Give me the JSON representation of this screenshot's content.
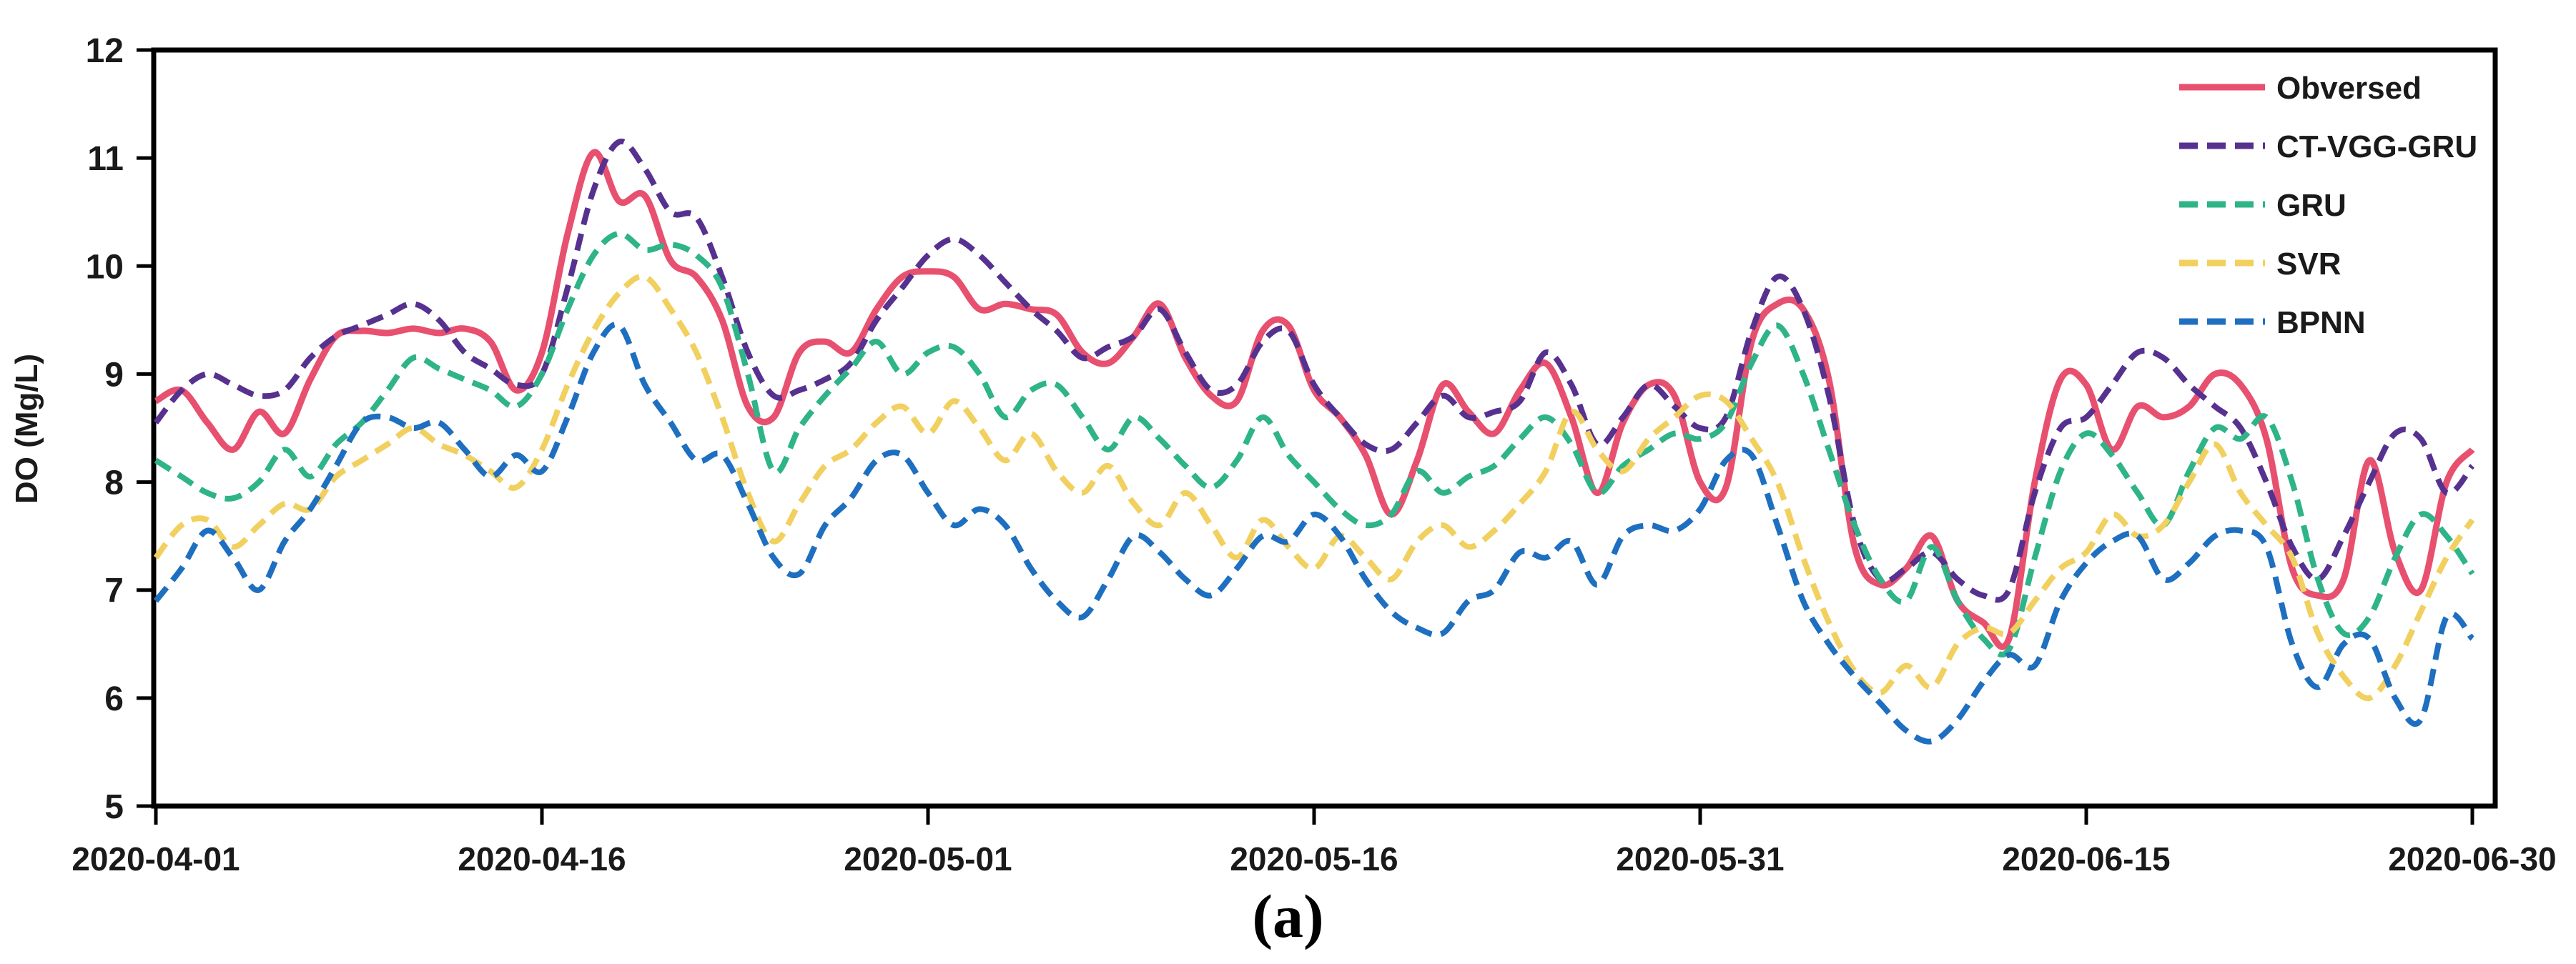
{
  "figure": {
    "caption": "(a)"
  },
  "chart_data": {
    "type": "line",
    "title": "",
    "xlabel": "",
    "ylabel": "DO (Mg/L)",
    "ylim": [
      5,
      12
    ],
    "yticks": [
      5,
      6,
      7,
      8,
      9,
      10,
      11,
      12
    ],
    "x_tick_labels": [
      "2020-04-01",
      "2020-04-16",
      "2020-05-01",
      "2020-05-16",
      "2020-05-31",
      "2020-06-15",
      "2020-06-30"
    ],
    "x_tick_days": [
      0,
      15,
      30,
      45,
      60,
      75,
      90
    ],
    "x_unit": "days since 2020-04-01, daily samples",
    "grid": false,
    "legend_position": "top-right",
    "axis_color": "#000000",
    "series": [
      {
        "name": "Obversed",
        "color": "#e8506f",
        "style": "solid",
        "values": [
          8.75,
          8.85,
          8.55,
          8.3,
          8.65,
          8.45,
          8.95,
          9.35,
          9.4,
          9.38,
          9.42,
          9.38,
          9.42,
          9.3,
          8.85,
          9.2,
          10.3,
          11.05,
          10.6,
          10.65,
          10.05,
          9.9,
          9.5,
          8.7,
          8.6,
          9.2,
          9.3,
          9.2,
          9.6,
          9.9,
          9.95,
          9.9,
          9.6,
          9.65,
          9.6,
          9.55,
          9.2,
          9.1,
          9.35,
          9.65,
          9.15,
          8.8,
          8.75,
          9.4,
          9.45,
          8.85,
          8.6,
          8.25,
          7.7,
          8.2,
          8.9,
          8.65,
          8.45,
          8.85,
          9.1,
          8.6,
          7.9,
          8.55,
          8.9,
          8.8,
          8.0,
          7.95,
          9.3,
          9.65,
          9.6,
          8.95,
          7.4,
          7.05,
          7.2,
          7.5,
          6.9,
          6.7,
          6.55,
          8.0,
          8.95,
          8.9,
          8.3,
          8.7,
          8.6,
          8.7,
          9.0,
          8.9,
          8.4,
          7.2,
          6.95,
          7.1,
          8.2,
          7.35,
          7.0,
          8.0,
          8.3
        ]
      },
      {
        "name": "CT-VGG-GRU",
        "color": "#56318f",
        "style": "dashed",
        "values": [
          8.55,
          8.85,
          9.0,
          8.9,
          8.8,
          8.85,
          9.15,
          9.35,
          9.45,
          9.55,
          9.65,
          9.5,
          9.2,
          9.05,
          8.9,
          9.0,
          9.8,
          10.7,
          11.15,
          10.9,
          10.5,
          10.45,
          9.9,
          9.2,
          8.8,
          8.85,
          8.95,
          9.1,
          9.5,
          9.8,
          10.1,
          10.25,
          10.1,
          9.85,
          9.6,
          9.4,
          9.15,
          9.25,
          9.35,
          9.6,
          9.2,
          8.85,
          8.9,
          9.3,
          9.4,
          8.9,
          8.6,
          8.35,
          8.3,
          8.55,
          8.8,
          8.6,
          8.65,
          8.75,
          9.2,
          8.9,
          8.35,
          8.6,
          8.9,
          8.7,
          8.5,
          8.6,
          9.4,
          9.9,
          9.6,
          8.8,
          7.6,
          7.1,
          7.2,
          7.35,
          7.1,
          6.95,
          7.0,
          7.9,
          8.5,
          8.6,
          8.9,
          9.2,
          9.15,
          8.9,
          8.7,
          8.5,
          8.0,
          7.4,
          7.1,
          7.5,
          8.0,
          8.45,
          8.4,
          7.9,
          8.15
        ]
      },
      {
        "name": "GRU",
        "color": "#2eb488",
        "style": "dashed",
        "values": [
          8.2,
          8.05,
          7.9,
          7.85,
          8.0,
          8.3,
          8.05,
          8.35,
          8.55,
          8.85,
          9.15,
          9.05,
          8.95,
          8.85,
          8.7,
          9.0,
          9.6,
          10.1,
          10.3,
          10.15,
          10.2,
          10.1,
          9.8,
          9.0,
          8.1,
          8.5,
          8.8,
          9.05,
          9.3,
          9.0,
          9.2,
          9.25,
          9.0,
          8.6,
          8.85,
          8.9,
          8.6,
          8.3,
          8.6,
          8.4,
          8.15,
          7.95,
          8.2,
          8.6,
          8.25,
          8.0,
          7.75,
          7.6,
          7.7,
          8.1,
          7.9,
          8.05,
          8.15,
          8.4,
          8.6,
          8.35,
          7.9,
          8.15,
          8.3,
          8.45,
          8.4,
          8.55,
          9.1,
          9.45,
          9.0,
          8.3,
          7.6,
          7.1,
          6.9,
          7.4,
          6.9,
          6.55,
          6.45,
          7.3,
          8.1,
          8.45,
          8.25,
          7.9,
          7.6,
          8.1,
          8.5,
          8.4,
          8.6,
          8.0,
          7.1,
          6.6,
          6.75,
          7.3,
          7.7,
          7.5,
          7.15
        ]
      },
      {
        "name": "SVR",
        "color": "#f1d05f",
        "style": "dashed",
        "values": [
          7.3,
          7.6,
          7.65,
          7.4,
          7.6,
          7.8,
          7.75,
          8.05,
          8.2,
          8.35,
          8.5,
          8.35,
          8.25,
          8.1,
          7.95,
          8.3,
          8.9,
          9.4,
          9.75,
          9.9,
          9.6,
          9.2,
          8.6,
          7.9,
          7.45,
          7.8,
          8.15,
          8.3,
          8.55,
          8.7,
          8.45,
          8.75,
          8.5,
          8.2,
          8.45,
          8.1,
          7.9,
          8.15,
          7.8,
          7.6,
          7.9,
          7.6,
          7.3,
          7.65,
          7.4,
          7.2,
          7.5,
          7.3,
          7.1,
          7.45,
          7.6,
          7.4,
          7.55,
          7.8,
          8.1,
          8.65,
          8.3,
          8.1,
          8.4,
          8.6,
          8.8,
          8.75,
          8.4,
          8.0,
          7.3,
          6.7,
          6.25,
          6.05,
          6.3,
          6.1,
          6.5,
          6.65,
          6.6,
          6.9,
          7.2,
          7.35,
          7.7,
          7.5,
          7.6,
          8.0,
          8.35,
          7.9,
          7.6,
          7.3,
          6.6,
          6.2,
          6.0,
          6.3,
          6.8,
          7.3,
          7.65
        ]
      },
      {
        "name": "BPNN",
        "color": "#1e6fc0",
        "style": "dashed",
        "values": [
          6.9,
          7.2,
          7.55,
          7.3,
          7.0,
          7.45,
          7.75,
          8.15,
          8.55,
          8.6,
          8.5,
          8.55,
          8.3,
          8.05,
          8.25,
          8.1,
          8.6,
          9.2,
          9.45,
          8.9,
          8.55,
          8.2,
          8.25,
          7.8,
          7.3,
          7.15,
          7.6,
          7.85,
          8.2,
          8.25,
          7.9,
          7.6,
          7.75,
          7.6,
          7.2,
          6.9,
          6.75,
          7.1,
          7.5,
          7.35,
          7.1,
          6.95,
          7.2,
          7.5,
          7.45,
          7.7,
          7.5,
          7.1,
          6.8,
          6.65,
          6.6,
          6.9,
          7.0,
          7.35,
          7.3,
          7.45,
          7.05,
          7.5,
          7.6,
          7.55,
          7.75,
          8.2,
          8.25,
          7.6,
          6.9,
          6.5,
          6.2,
          5.95,
          5.7,
          5.6,
          5.8,
          6.15,
          6.4,
          6.3,
          6.9,
          7.25,
          7.45,
          7.5,
          7.1,
          7.25,
          7.5,
          7.55,
          7.4,
          6.5,
          6.1,
          6.5,
          6.55,
          6.0,
          5.8,
          6.75,
          6.55
        ]
      }
    ]
  }
}
